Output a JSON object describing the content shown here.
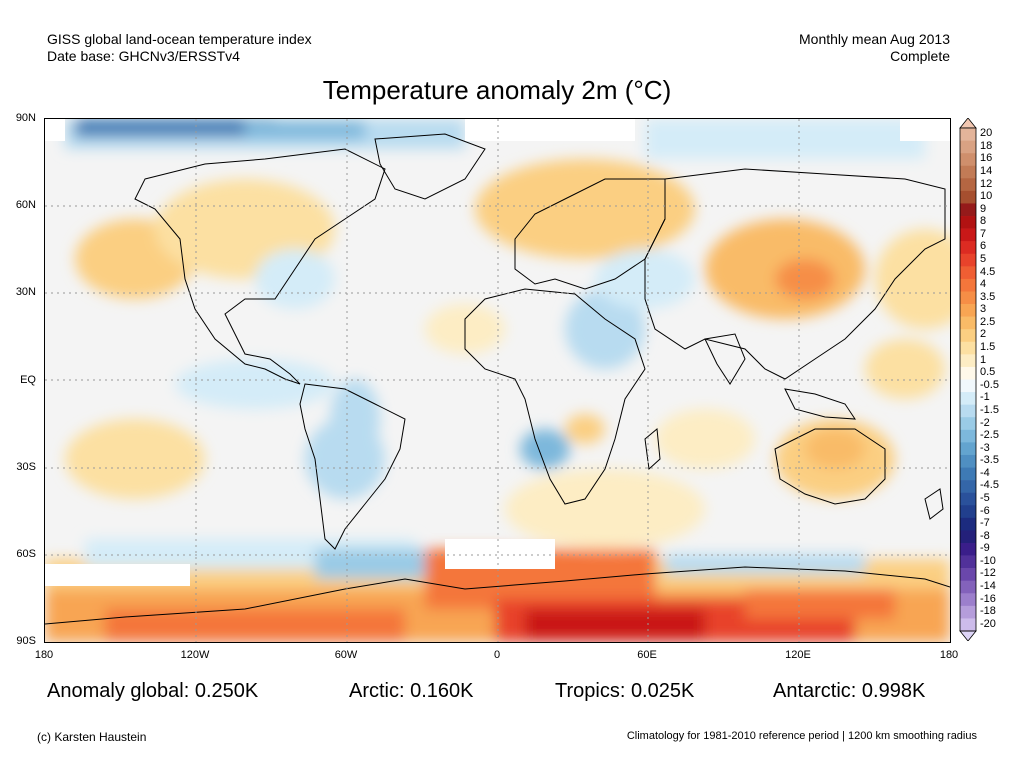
{
  "header": {
    "left_line1": "GISS global land-ocean temperature index",
    "left_line2": "Date base: GHCNv3/ERSSTv4",
    "right_line1": "Monthly mean Aug 2013",
    "right_line2": "Complete"
  },
  "title": "Temperature anomaly 2m (°C)",
  "map": {
    "lat_labels": [
      "90N",
      "60N",
      "30N",
      "EQ",
      "30S",
      "60S",
      "90S"
    ],
    "lon_labels": [
      "180",
      "120W",
      "60W",
      "0",
      "60E",
      "120E",
      "180"
    ]
  },
  "legend": {
    "labels": [
      "20",
      "18",
      "16",
      "14",
      "12",
      "10",
      "9",
      "8",
      "7",
      "6",
      "5",
      "4.5",
      "4",
      "3.5",
      "3",
      "2.5",
      "2",
      "1.5",
      "1",
      "0.5",
      "-0.5",
      "-1",
      "-1.5",
      "-2",
      "-2.5",
      "-3",
      "-3.5",
      "-4",
      "-4.5",
      "-5",
      "-6",
      "-7",
      "-8",
      "-9",
      "-10",
      "-12",
      "-14",
      "-16",
      "-18",
      "-20"
    ],
    "colors": [
      "#e3b49a",
      "#d9a283",
      "#cf8f6c",
      "#c27b56",
      "#b56642",
      "#a64f2f",
      "#951a1a",
      "#b11212",
      "#c91818",
      "#dc2b22",
      "#e8432b",
      "#ef5e33",
      "#f4763b",
      "#f68e46",
      "#f8a553",
      "#f9bb67",
      "#fbcf82",
      "#fce0a2",
      "#fdedc4",
      "#fff9ea",
      "#f1f8fc",
      "#d4ecf8",
      "#b8dbf0",
      "#9acbe6",
      "#7db8dc",
      "#63a4cf",
      "#4f8fc2",
      "#3e7ab5",
      "#3466a8",
      "#2a519b",
      "#213f8d",
      "#1c2b7f",
      "#24207a",
      "#3a1e8a",
      "#51319a",
      "#6a47ab",
      "#8362bb",
      "#9c7fcc",
      "#b59ddb",
      "#cdbceb"
    ],
    "cap_top_color": "#f2c7b1",
    "cap_bottom_color": "#ddd4f7"
  },
  "stats": {
    "global": "Anomaly global: 0.250K",
    "arctic": "Arctic: 0.160K",
    "tropics": "Tropics: 0.025K",
    "antarctic": "Antarctic: 0.998K"
  },
  "footer": {
    "credit": "(c) Karsten Haustein",
    "note": "Climatology for 1981-2010 reference period | 1200 km smoothing radius"
  }
}
